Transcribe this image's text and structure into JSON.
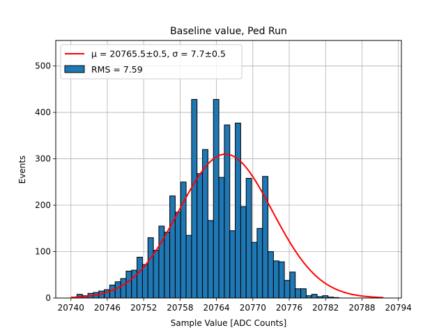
{
  "chart_data": {
    "type": "bar",
    "title": "Baseline value, Ped Run",
    "xlabel": "Sample Value [ADC Counts]",
    "ylabel": "Events",
    "xlim": [
      20737.5,
      20794.5
    ],
    "ylim": [
      0,
      555
    ],
    "xticks": [
      20740,
      20746,
      20752,
      20758,
      20764,
      20770,
      20776,
      20782,
      20788,
      20794
    ],
    "yticks": [
      0,
      100,
      200,
      300,
      400,
      500
    ],
    "grid": true,
    "legend_position": "upper left",
    "histogram": {
      "name": "RMS = 7.59",
      "color": "#1f77b4",
      "bin_start": 20741,
      "bin_width": 0.9,
      "values": [
        8,
        5,
        10,
        12,
        15,
        18,
        28,
        35,
        42,
        58,
        60,
        88,
        72,
        130,
        103,
        155,
        142,
        220,
        185,
        250,
        135,
        428,
        268,
        320,
        167,
        428,
        260,
        373,
        145,
        377,
        197,
        258,
        120,
        150,
        262,
        100,
        80,
        78,
        38,
        56,
        20,
        20,
        5,
        8,
        3,
        5,
        2,
        1
      ]
    },
    "fit": {
      "name": "$\\mu = 20765.5\\pm0.5$, $\\sigma = 7.7\\pm0.5$",
      "legend_label": "μ = 20765.5±0.5, σ = 7.7±0.5",
      "color": "#ff0000",
      "type": "gaussian",
      "mu": 20765.5,
      "sigma": 7.7,
      "amplitude": 310,
      "x_range": [
        20740,
        20791.5
      ]
    }
  }
}
